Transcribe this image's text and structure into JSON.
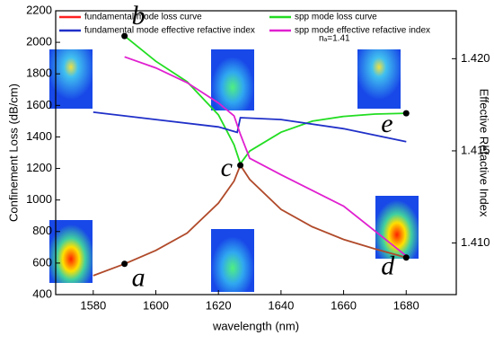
{
  "chart_data": {
    "type": "line",
    "xlabel": "wavelength (nm)",
    "ylabel": "Confinement Loss (dB/cm)",
    "y2label": "Effective Refactive Index",
    "xlim": [
      1568,
      1696
    ],
    "xticks": [
      1580,
      1600,
      1620,
      1640,
      1660,
      1680
    ],
    "ylim": [
      400,
      2200
    ],
    "yticks": [
      400,
      600,
      800,
      1000,
      1200,
      1400,
      1600,
      1800,
      2000,
      2200
    ],
    "y2lim": [
      1.4072,
      1.4226
    ],
    "y2ticks": [
      {
        "value": 1.41,
        "label": "1.410"
      },
      {
        "value": 1.415,
        "label": "1.415"
      },
      {
        "value": 1.42,
        "label": "1.420"
      }
    ],
    "series": [
      {
        "name": "fundamental mode  loss curve",
        "color": "#b04a2a",
        "legend_color": "#ff2020",
        "x": [
          1580,
          1590,
          1600,
          1610,
          1620,
          1625,
          1627,
          1630,
          1640,
          1650,
          1660,
          1670,
          1680
        ],
        "values": [
          520,
          595,
          680,
          790,
          980,
          1120,
          1220,
          1130,
          940,
          830,
          750,
          690,
          635
        ]
      },
      {
        "name": "spp  mode  loss curve",
        "color": "#22dd22",
        "x": [
          1590,
          1600,
          1610,
          1620,
          1625,
          1627,
          1630,
          1640,
          1650,
          1660,
          1670,
          1680
        ],
        "values": [
          2040,
          1880,
          1750,
          1540,
          1350,
          1230,
          1310,
          1430,
          1500,
          1530,
          1545,
          1550
        ]
      },
      {
        "name": "fundamental mode  effective refactive index",
        "color": "#2030c8",
        "axis": "y2",
        "x": [
          1580,
          1600,
          1620,
          1626,
          1627,
          1640,
          1660,
          1680
        ],
        "values": [
          1.4171,
          1.4167,
          1.4163,
          1.416,
          1.4168,
          1.4167,
          1.4162,
          1.4155
        ]
      },
      {
        "name": "spp mode effective refactive index",
        "color": "#e020d0",
        "axis": "y2",
        "x": [
          1590,
          1600,
          1610,
          1620,
          1625,
          1627,
          1630,
          1640,
          1660,
          1680
        ],
        "values": [
          1.4201,
          1.4195,
          1.4187,
          1.4176,
          1.4169,
          1.4159,
          1.4146,
          1.4137,
          1.412,
          1.4093
        ]
      }
    ],
    "annotations": [
      {
        "text": "a",
        "x": 1590,
        "y": 595
      },
      {
        "text": "b",
        "x": 1590,
        "y": 2040
      },
      {
        "text": "c",
        "x": 1627,
        "y": 1220
      },
      {
        "text": "d",
        "x": 1680,
        "y": 635
      },
      {
        "text": "e",
        "x": 1680,
        "y": 1550
      }
    ],
    "note": "nₐ=1.41"
  }
}
